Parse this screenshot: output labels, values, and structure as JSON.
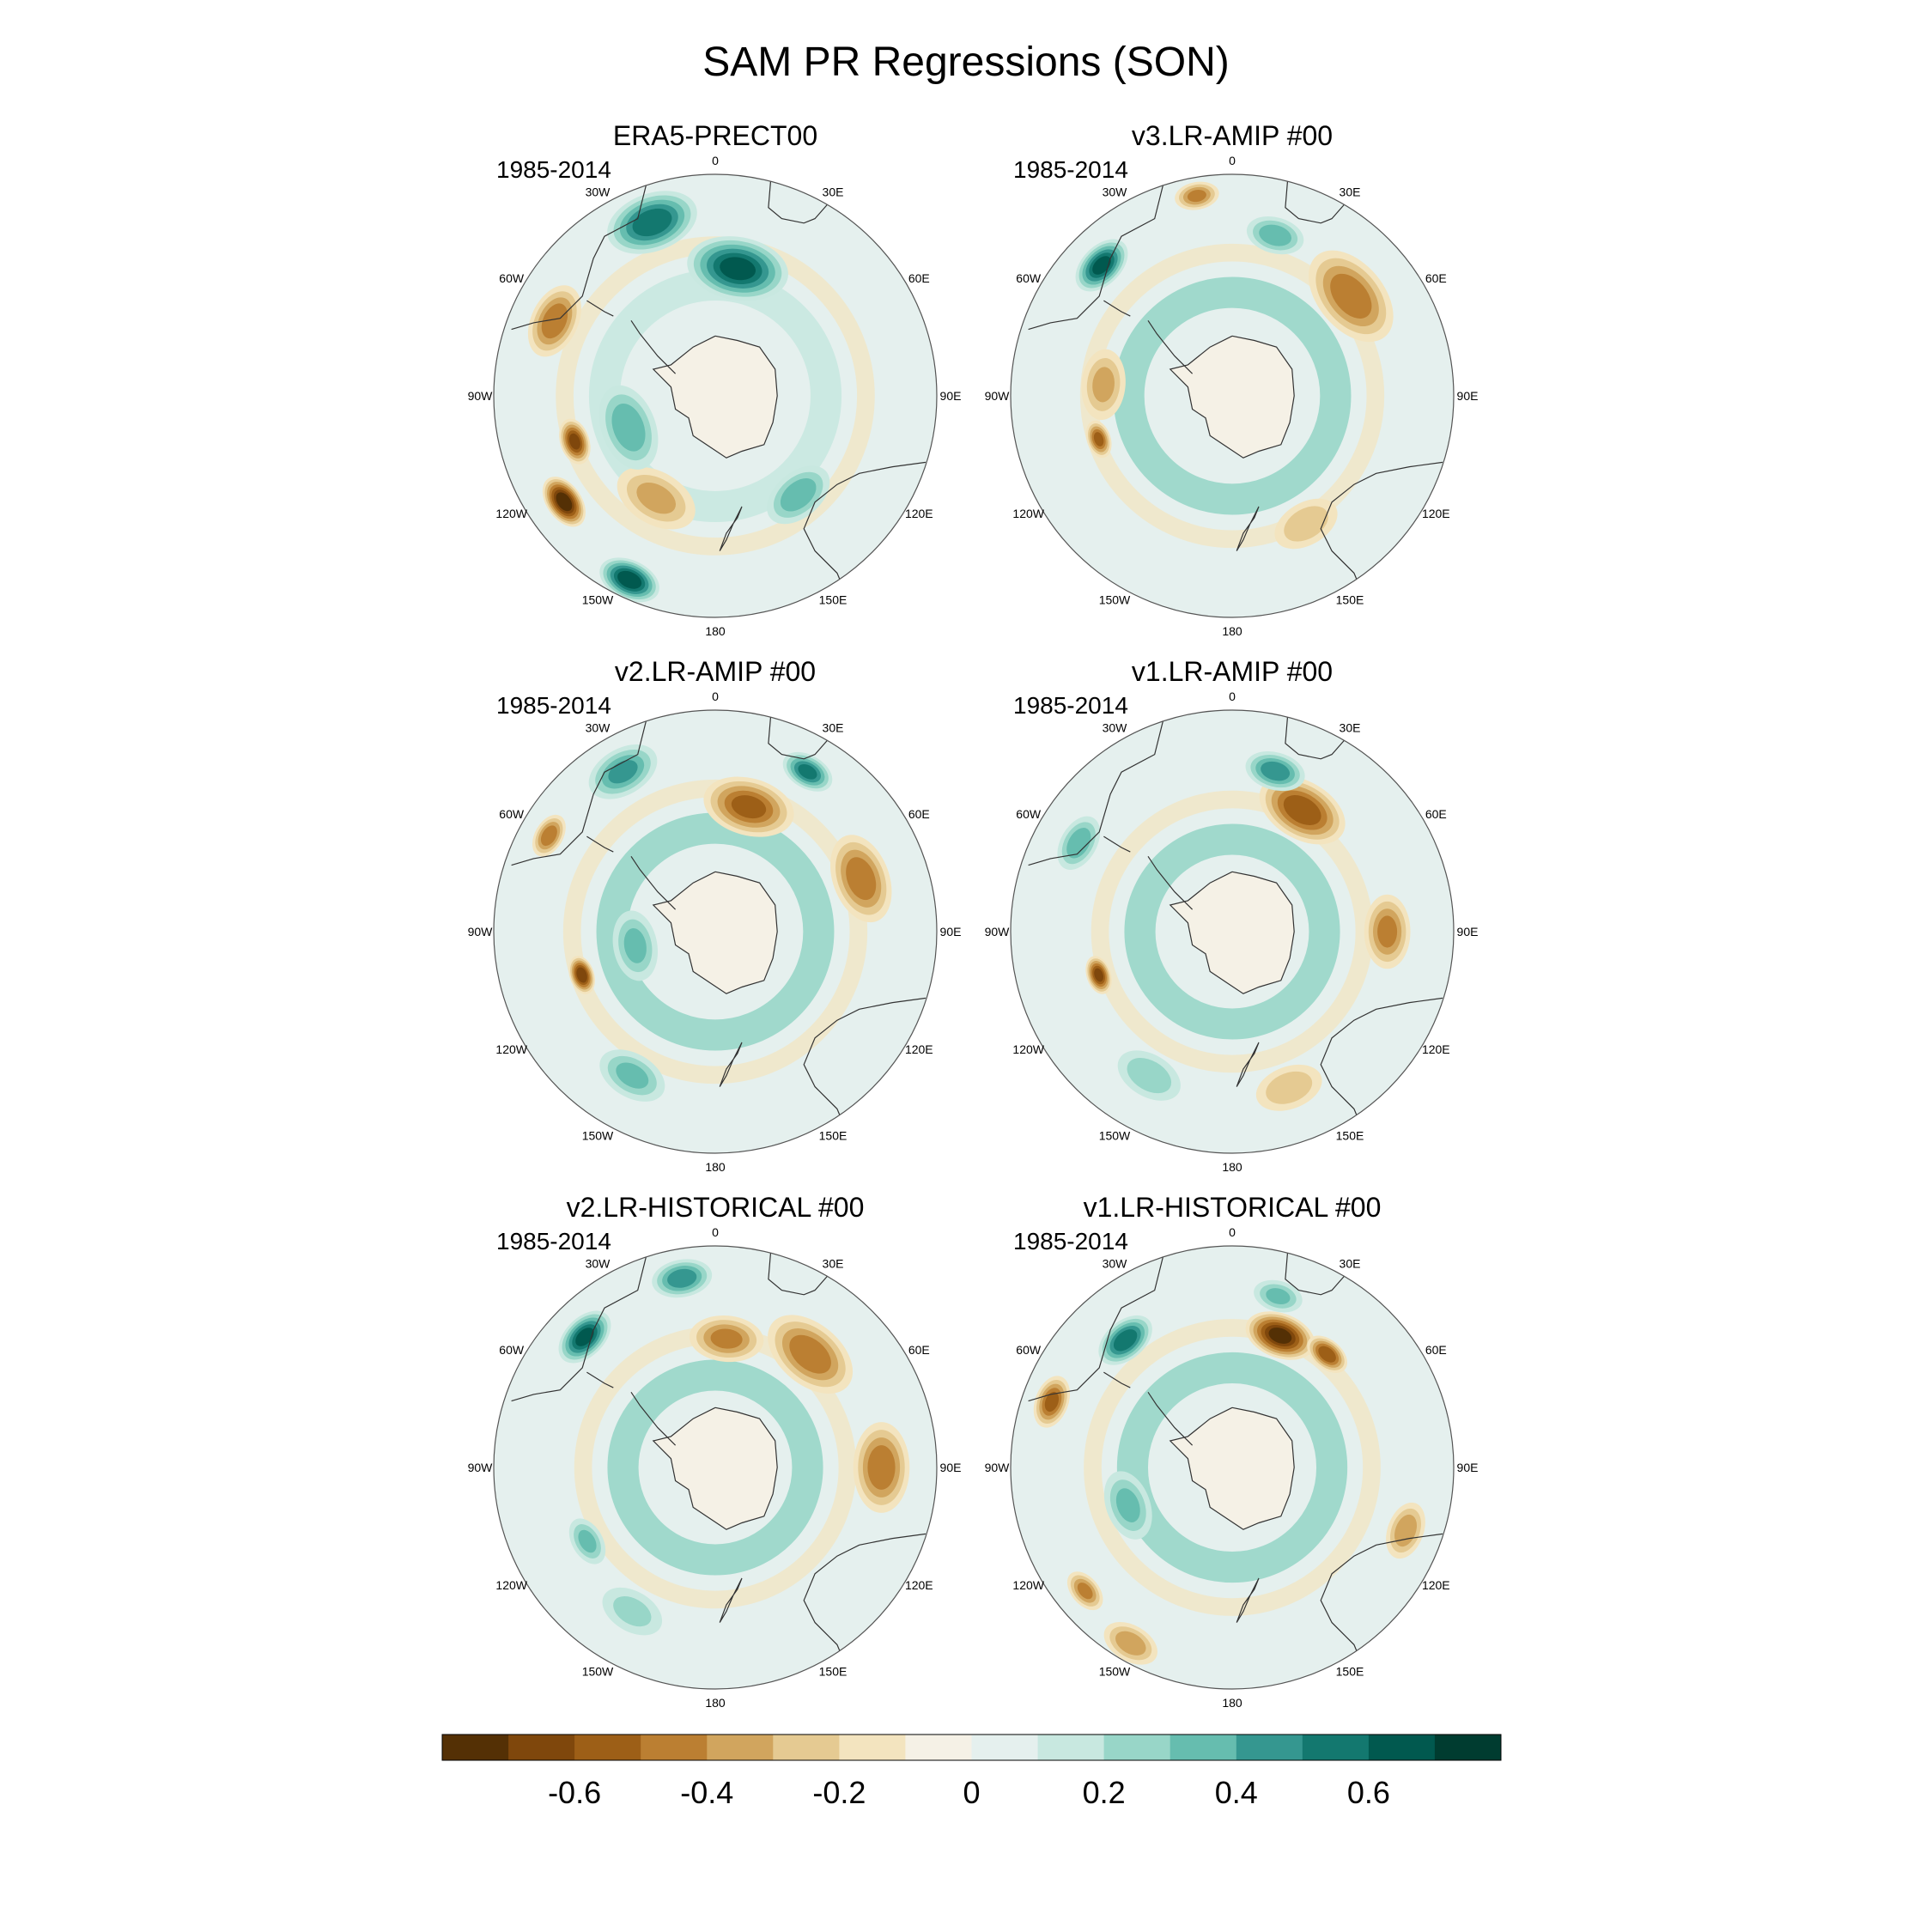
{
  "chart_data": {
    "type": "heatmap",
    "projection": "south polar stereographic",
    "title": "SAM PR Regressions (SON)",
    "longitude_labels": [
      "0",
      "30E",
      "60E",
      "90E",
      "120E",
      "150E",
      "180",
      "150W",
      "120W",
      "90W",
      "60W",
      "30W"
    ],
    "colorbar": {
      "levels": [
        -0.7,
        -0.6,
        -0.5,
        -0.4,
        -0.3,
        -0.2,
        -0.1,
        0,
        0.1,
        0.2,
        0.3,
        0.4,
        0.5,
        0.6,
        0.7
      ],
      "colors": [
        "#543005",
        "#7f470c",
        "#9d5f17",
        "#bb7f32",
        "#d1a55e",
        "#e5ca92",
        "#f3e4bf",
        "#f5f1e6",
        "#e5f0ee",
        "#c8e8e0",
        "#98d6c8",
        "#66bdaf",
        "#359790",
        "#13786f",
        "#01594f",
        "#003c30"
      ],
      "tick_values": [
        -0.6,
        -0.4,
        -0.2,
        0,
        0.2,
        0.4,
        0.6
      ],
      "tick_labels": [
        "-0.6",
        "-0.4",
        "-0.2",
        "0",
        "0.2",
        "0.4",
        "0.6"
      ]
    },
    "panels": [
      {
        "title": "ERA5-PRECT00",
        "period": "1985-2014",
        "features": [
          {
            "lon": -55,
            "lat": -40,
            "v": -0.75,
            "s": 0.07
          },
          {
            "lon": -25,
            "lat": -35,
            "v": 0.65,
            "s": 0.08
          },
          {
            "lon": -72,
            "lat": -50,
            "v": -0.6,
            "s": 0.06
          },
          {
            "lon": 170,
            "lat": -55,
            "v": 0.6,
            "s": 0.13
          },
          {
            "lon": -160,
            "lat": -40,
            "v": 0.55,
            "s": 0.12
          },
          {
            "lon": -115,
            "lat": -42,
            "v": -0.45,
            "s": 0.1
          },
          {
            "lon": 40,
            "lat": -55,
            "v": 0.35,
            "s": 0.1
          },
          {
            "lon": -30,
            "lat": -58,
            "v": -0.3,
            "s": 0.12
          },
          {
            "lon": -70,
            "lat": -65,
            "v": 0.35,
            "s": 0.12
          }
        ],
        "ring": {
          "lat": -60,
          "v": 0.18
        }
      },
      {
        "title": "v3.LR-AMIP  #00",
        "period": "1985-2014",
        "features": [
          {
            "lon": -135,
            "lat": -40,
            "v": 0.6,
            "s": 0.08
          },
          {
            "lon": 130,
            "lat": -48,
            "v": -0.45,
            "s": 0.14
          },
          {
            "lon": 30,
            "lat": -50,
            "v": -0.25,
            "s": 0.1
          },
          {
            "lon": -72,
            "lat": -52,
            "v": -0.5,
            "s": 0.05
          },
          {
            "lon": -95,
            "lat": -55,
            "v": -0.3,
            "s": 0.1
          },
          {
            "lon": 165,
            "lat": -45,
            "v": 0.35,
            "s": 0.08
          },
          {
            "lon": -170,
            "lat": -35,
            "v": -0.4,
            "s": 0.06
          }
        ],
        "ring": {
          "lat": -62,
          "v": 0.22
        }
      },
      {
        "title": "v2.LR-AMIP  #00",
        "period": "1985-2014",
        "features": [
          {
            "lon": 110,
            "lat": -48,
            "v": -0.45,
            "s": 0.12
          },
          {
            "lon": 165,
            "lat": -55,
            "v": -0.5,
            "s": 0.12
          },
          {
            "lon": -72,
            "lat": -52,
            "v": -0.65,
            "s": 0.05
          },
          {
            "lon": 150,
            "lat": -40,
            "v": 0.5,
            "s": 0.07
          },
          {
            "lon": -150,
            "lat": -40,
            "v": 0.4,
            "s": 0.1
          },
          {
            "lon": -120,
            "lat": -38,
            "v": -0.45,
            "s": 0.06
          },
          {
            "lon": -30,
            "lat": -45,
            "v": 0.3,
            "s": 0.1
          },
          {
            "lon": -80,
            "lat": -68,
            "v": 0.3,
            "s": 0.1
          }
        ],
        "ring": {
          "lat": -62,
          "v": 0.2
        }
      },
      {
        "title": "v1.LR-AMIP  #00",
        "period": "1985-2014",
        "features": [
          {
            "lon": 90,
            "lat": -48,
            "v": -0.4,
            "s": 0.1
          },
          {
            "lon": 150,
            "lat": -52,
            "v": -0.55,
            "s": 0.12
          },
          {
            "lon": -72,
            "lat": -52,
            "v": -0.6,
            "s": 0.05
          },
          {
            "lon": 165,
            "lat": -45,
            "v": 0.45,
            "s": 0.08
          },
          {
            "lon": -120,
            "lat": -42,
            "v": 0.35,
            "s": 0.08
          },
          {
            "lon": 20,
            "lat": -45,
            "v": -0.25,
            "s": 0.1
          },
          {
            "lon": -30,
            "lat": -45,
            "v": 0.25,
            "s": 0.1
          }
        ],
        "ring": {
          "lat": -65,
          "v": 0.25
        }
      },
      {
        "title": "v2.LR-HISTORICAL  #00",
        "period": "1985-2014",
        "features": [
          {
            "lon": 90,
            "lat": -45,
            "v": -0.45,
            "s": 0.12
          },
          {
            "lon": 140,
            "lat": -50,
            "v": -0.45,
            "s": 0.13
          },
          {
            "lon": 175,
            "lat": -55,
            "v": -0.4,
            "s": 0.1
          },
          {
            "lon": -135,
            "lat": -40,
            "v": 0.6,
            "s": 0.08
          },
          {
            "lon": -170,
            "lat": -38,
            "v": 0.45,
            "s": 0.08
          },
          {
            "lon": -60,
            "lat": -50,
            "v": 0.3,
            "s": 0.07
          },
          {
            "lon": -30,
            "lat": -45,
            "v": 0.2,
            "s": 0.1
          }
        ],
        "ring": {
          "lat": -65,
          "v": 0.2
        }
      },
      {
        "title": "v1.LR-HISTORICAL  #00",
        "period": "1985-2014",
        "features": [
          {
            "lon": 160,
            "lat": -52,
            "v": -0.7,
            "s": 0.09
          },
          {
            "lon": 140,
            "lat": -50,
            "v": -0.55,
            "s": 0.06
          },
          {
            "lon": -110,
            "lat": -38,
            "v": -0.5,
            "s": 0.07
          },
          {
            "lon": -140,
            "lat": -45,
            "v": 0.55,
            "s": 0.08
          },
          {
            "lon": 70,
            "lat": -40,
            "v": -0.35,
            "s": 0.08
          },
          {
            "lon": -50,
            "lat": -38,
            "v": -0.4,
            "s": 0.06
          },
          {
            "lon": -30,
            "lat": -35,
            "v": -0.35,
            "s": 0.08
          },
          {
            "lon": 165,
            "lat": -42,
            "v": 0.3,
            "s": 0.07
          },
          {
            "lon": -70,
            "lat": -60,
            "v": 0.3,
            "s": 0.1
          }
        ],
        "ring": {
          "lat": -63,
          "v": 0.2
        }
      }
    ]
  }
}
